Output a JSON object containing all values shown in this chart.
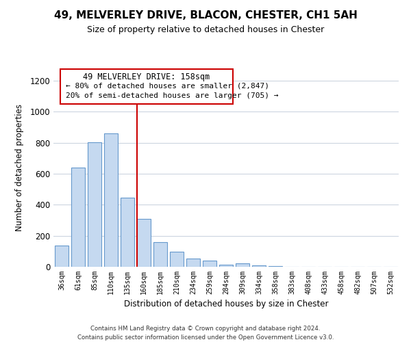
{
  "title": "49, MELVERLEY DRIVE, BLACON, CHESTER, CH1 5AH",
  "subtitle": "Size of property relative to detached houses in Chester",
  "xlabel": "Distribution of detached houses by size in Chester",
  "ylabel": "Number of detached properties",
  "bar_color": "#c5d9f0",
  "bar_edge_color": "#6699cc",
  "categories": [
    "36sqm",
    "61sqm",
    "85sqm",
    "110sqm",
    "135sqm",
    "160sqm",
    "185sqm",
    "210sqm",
    "234sqm",
    "259sqm",
    "284sqm",
    "309sqm",
    "334sqm",
    "358sqm",
    "383sqm",
    "408sqm",
    "433sqm",
    "458sqm",
    "482sqm",
    "507sqm",
    "532sqm"
  ],
  "values": [
    135,
    640,
    805,
    860,
    445,
    310,
    158,
    95,
    52,
    40,
    15,
    20,
    8,
    3,
    1,
    0,
    0,
    0,
    0,
    0,
    2
  ],
  "ylim": [
    0,
    1280
  ],
  "yticks": [
    0,
    200,
    400,
    600,
    800,
    1000,
    1200
  ],
  "property_line_color": "#cc0000",
  "annotation_title": "49 MELVERLEY DRIVE: 158sqm",
  "annotation_line1": "← 80% of detached houses are smaller (2,847)",
  "annotation_line2": "20% of semi-detached houses are larger (705) →",
  "annotation_box_color": "#cc0000",
  "footer_line1": "Contains HM Land Registry data © Crown copyright and database right 2024.",
  "footer_line2": "Contains public sector information licensed under the Open Government Licence v3.0.",
  "background_color": "#ffffff",
  "grid_color": "#ccd5e0"
}
